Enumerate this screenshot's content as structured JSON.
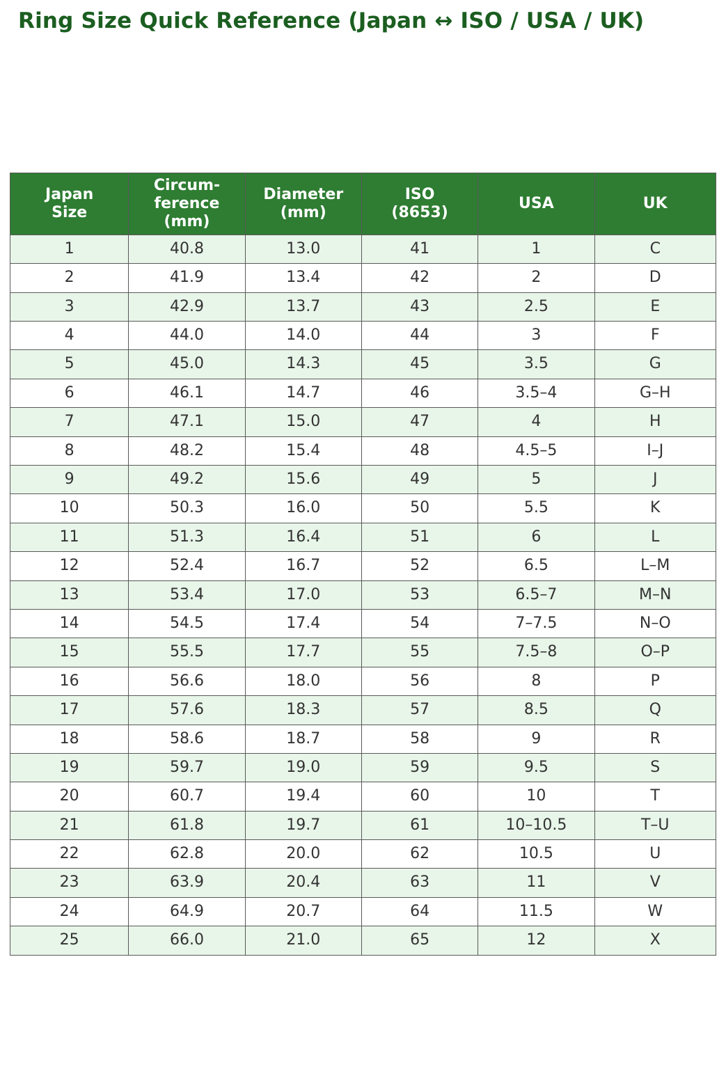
{
  "page": {
    "title": "Ring Size Quick Reference (Japan ↔ ISO / USA / UK)"
  },
  "colors": {
    "title_text": "#1b5e20",
    "header_bg": "#2e7d32",
    "header_text": "#ffffff",
    "row_alt_bg": "#e8f5e9",
    "row_bg": "#ffffff",
    "border": "#595959",
    "cell_text": "#333333"
  },
  "chart_data": {
    "type": "table",
    "title": "Ring Size Quick Reference (Japan ↔ ISO / USA / UK)",
    "columns": [
      "Japan\nSize",
      "Circum-\nference\n(mm)",
      "Diameter\n(mm)",
      "ISO\n(8653)",
      "USA",
      "UK"
    ],
    "rows": [
      [
        "1",
        "40.8",
        "13.0",
        "41",
        "1",
        "C"
      ],
      [
        "2",
        "41.9",
        "13.4",
        "42",
        "2",
        "D"
      ],
      [
        "3",
        "42.9",
        "13.7",
        "43",
        "2.5",
        "E"
      ],
      [
        "4",
        "44.0",
        "14.0",
        "44",
        "3",
        "F"
      ],
      [
        "5",
        "45.0",
        "14.3",
        "45",
        "3.5",
        "G"
      ],
      [
        "6",
        "46.1",
        "14.7",
        "46",
        "3.5–4",
        "G–H"
      ],
      [
        "7",
        "47.1",
        "15.0",
        "47",
        "4",
        "H"
      ],
      [
        "8",
        "48.2",
        "15.4",
        "48",
        "4.5–5",
        "I–J"
      ],
      [
        "9",
        "49.2",
        "15.6",
        "49",
        "5",
        "J"
      ],
      [
        "10",
        "50.3",
        "16.0",
        "50",
        "5.5",
        "K"
      ],
      [
        "11",
        "51.3",
        "16.4",
        "51",
        "6",
        "L"
      ],
      [
        "12",
        "52.4",
        "16.7",
        "52",
        "6.5",
        "L–M"
      ],
      [
        "13",
        "53.4",
        "17.0",
        "53",
        "6.5–7",
        "M–N"
      ],
      [
        "14",
        "54.5",
        "17.4",
        "54",
        "7–7.5",
        "N–O"
      ],
      [
        "15",
        "55.5",
        "17.7",
        "55",
        "7.5–8",
        "O–P"
      ],
      [
        "16",
        "56.6",
        "18.0",
        "56",
        "8",
        "P"
      ],
      [
        "17",
        "57.6",
        "18.3",
        "57",
        "8.5",
        "Q"
      ],
      [
        "18",
        "58.6",
        "18.7",
        "58",
        "9",
        "R"
      ],
      [
        "19",
        "59.7",
        "19.0",
        "59",
        "9.5",
        "S"
      ],
      [
        "20",
        "60.7",
        "19.4",
        "60",
        "10",
        "T"
      ],
      [
        "21",
        "61.8",
        "19.7",
        "61",
        "10–10.5",
        "T–U"
      ],
      [
        "22",
        "62.8",
        "20.0",
        "62",
        "10.5",
        "U"
      ],
      [
        "23",
        "63.9",
        "20.4",
        "63",
        "11",
        "V"
      ],
      [
        "24",
        "64.9",
        "20.7",
        "64",
        "11.5",
        "W"
      ],
      [
        "25",
        "66.0",
        "21.0",
        "65",
        "12",
        "X"
      ]
    ]
  }
}
